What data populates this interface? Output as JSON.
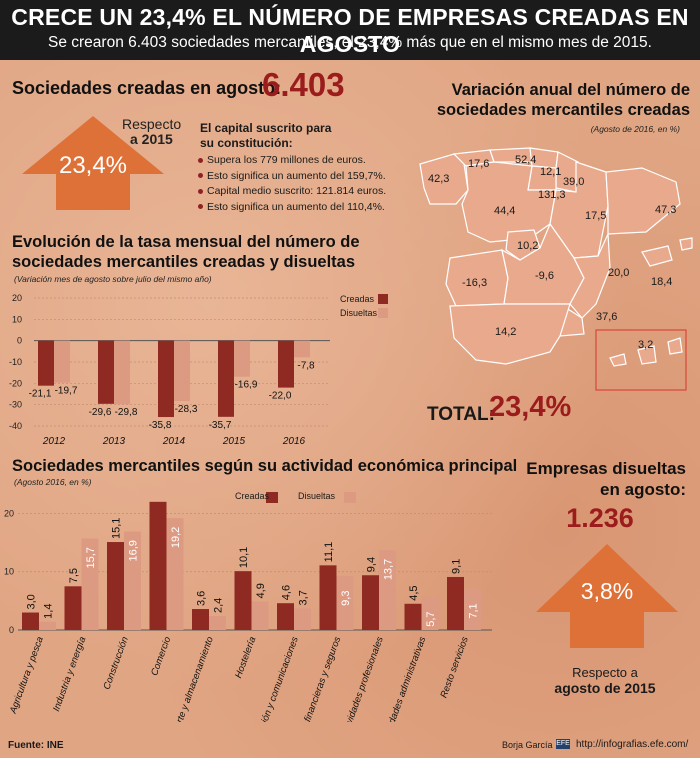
{
  "header": {
    "title": "CRECE  UN 23,4% EL NÚMERO DE EMPRESAS CREADAS EN AGOSTO",
    "subtitle": "Se crearon 6.403 sociedades mercantiles, el 23,4% más que en el mismo mes de 2015."
  },
  "created": {
    "label": "Sociedades creadas en agosto:",
    "value": "6.403",
    "respecto_line1": "Respecto",
    "respecto_line2": "a 2015",
    "arrow_value": "23,4%",
    "capital_title_1": "El capital suscrito para",
    "capital_title_2": "su constitución:",
    "bullets": [
      "Supera los 779 millones de euros.",
      "Esto significa un aumento del 159,7%.",
      "Capital medio suscrito: 121.814 euros.",
      "Esto significa un aumento del 110,4%."
    ]
  },
  "map": {
    "title_1": "Variación anual del número de",
    "title_2": "sociedades mercantiles creadas",
    "note": "(Agosto de 2016, en %)",
    "regions": [
      {
        "name": "Galicia",
        "value": "42,3"
      },
      {
        "name": "Asturias",
        "value": "17,6"
      },
      {
        "name": "Cantabria",
        "value": "52,4"
      },
      {
        "name": "País Vasco",
        "value": "12,1"
      },
      {
        "name": "Navarra",
        "value": "39,0"
      },
      {
        "name": "La Rioja",
        "value": "131,3"
      },
      {
        "name": "Castilla y León",
        "value": "44,4"
      },
      {
        "name": "Aragón",
        "value": "17,5"
      },
      {
        "name": "Cataluña",
        "value": "47,3"
      },
      {
        "name": "Madrid",
        "value": "10,2"
      },
      {
        "name": "Extremadura",
        "value": "-16,3"
      },
      {
        "name": "Castilla-La Mancha",
        "value": "-9,6"
      },
      {
        "name": "C. Valenciana",
        "value": "20,0"
      },
      {
        "name": "Baleares",
        "value": "18,4"
      },
      {
        "name": "Murcia",
        "value": "37,6"
      },
      {
        "name": "Andalucía",
        "value": "14,2"
      },
      {
        "name": "Canarias",
        "value": "3,2"
      }
    ],
    "total_label": "TOTAL:",
    "total_value": "23,4%"
  },
  "chart_data": [
    {
      "type": "bar",
      "title": "Evolución de la tasa mensual del número de sociedades mercantiles creadas y disueltas",
      "subtitle": "(Variación mes de agosto sobre julio del mismo año)",
      "categories": [
        "2012",
        "2013",
        "2014",
        "2015",
        "2016"
      ],
      "series": [
        {
          "name": "Creadas",
          "values": [
            -21.1,
            -29.6,
            -35.8,
            -35.7,
            -22.0
          ],
          "labels": [
            "-21,1",
            "-29,6",
            "-35,8",
            "-35,7",
            "-22,0"
          ]
        },
        {
          "name": "Disueltas",
          "values": [
            -19.7,
            -29.8,
            -28.3,
            -16.9,
            -7.8
          ],
          "labels": [
            "-19,7",
            "-29,8",
            "-28,3",
            "-16,9",
            "-7,8"
          ]
        }
      ],
      "yticks": [
        "20",
        "10",
        "0",
        "-10",
        "-20",
        "-30",
        "-40"
      ],
      "ylim": [
        -40,
        20
      ]
    },
    {
      "type": "bar",
      "title": "Sociedades mercantiles según su actividad económica principal",
      "subtitle": "(Agosto 2016, en %)",
      "categories": [
        "Agricultura y pesca",
        "Industria y energía",
        "Construcción",
        "Comercio",
        "Transporte y almacenamiento",
        "Hostelería",
        "Información y comunicaciones",
        "Inmobiliarias, financieras y seguros",
        "Actividades profesionales",
        "Actividades administrativas",
        "Resto servicios"
      ],
      "series": [
        {
          "name": "Creadas",
          "values": [
            3.0,
            7.5,
            15.1,
            22.0,
            3.6,
            10.1,
            4.6,
            11.1,
            9.4,
            4.5,
            9.1
          ],
          "labels": [
            "3,0",
            "7,5",
            "15,1",
            "",
            "3,6",
            "10,1",
            "4,6",
            "11,1",
            "9,4",
            "4,5",
            "9,1"
          ]
        },
        {
          "name": "Disueltas",
          "values": [
            1.4,
            15.7,
            16.9,
            19.2,
            2.4,
            4.9,
            3.7,
            9.3,
            13.7,
            5.7,
            7.1
          ],
          "labels": [
            "1,4",
            "15,7",
            "16,9",
            "19,2",
            "2,4",
            "4,9",
            "3,7",
            "9,3",
            "13,7",
            "5,7",
            "7,1"
          ]
        }
      ],
      "yticks": [
        "20",
        "10",
        "0"
      ],
      "ylim": [
        0,
        23
      ]
    }
  ],
  "monthly_chart": {
    "title_1": "Evolución de la tasa mensual del número de",
    "title_2": "sociedades mercantiles creadas y disueltas",
    "note": "(Variación mes de agosto sobre julio del mismo año)",
    "legend_creadas": "Creadas",
    "legend_disueltas": "Disueltas"
  },
  "activity_chart": {
    "title": "Sociedades mercantiles según su actividad económica principal",
    "note": "(Agosto 2016, en %)",
    "legend_creadas": "Creadas",
    "legend_disueltas": "Disueltas"
  },
  "dissolved": {
    "title_1": "Empresas disueltas",
    "title_2": "en agosto:",
    "value": "1.236",
    "arrow_value": "3,8%",
    "respecto_1": "Respecto a",
    "respecto_2": "agosto de 2015"
  },
  "footer": {
    "source": "Fuente: INE",
    "author": "Borja García",
    "url": "http://infografias.efe.com/"
  },
  "colors": {
    "creadas": "#8e2a22",
    "disueltas": "#dc9a82",
    "arrow": "#de7138",
    "accent": "#9b1c1c",
    "map_fill": "#e9a98c",
    "map_stroke": "#ffffff"
  }
}
